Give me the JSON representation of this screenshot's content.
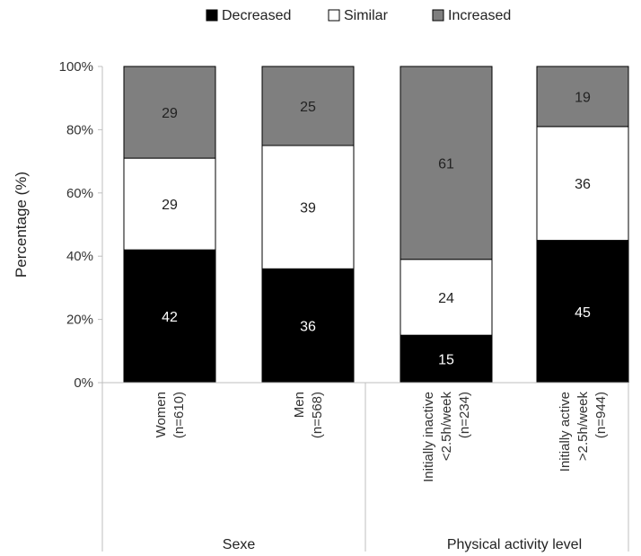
{
  "chart_data": {
    "type": "bar",
    "stacked": true,
    "title": "",
    "xlabel": "",
    "ylabel": "Percentage (%)",
    "ylim": [
      0,
      100
    ],
    "yticks": [
      "0%",
      "20%",
      "40%",
      "60%",
      "80%",
      "100%"
    ],
    "legend_position": "top",
    "categories": [
      [
        "Women",
        "(n=610)"
      ],
      [
        "Men",
        "(n=568)"
      ],
      [
        "Initially inactive",
        "<2.5h/week",
        "(n=234)"
      ],
      [
        "Initially active",
        ">2.5h/week",
        "(n=944)"
      ]
    ],
    "groups": [
      {
        "label": "Sexe",
        "categories": [
          0,
          1
        ]
      },
      {
        "label": "Physical activity level",
        "categories": [
          2,
          3
        ]
      }
    ],
    "series": [
      {
        "name": "Decreased",
        "color": "#000000",
        "label_color": "#ffffff",
        "values": [
          42,
          36,
          15,
          45
        ]
      },
      {
        "name": "Similar",
        "color": "#ffffff",
        "label_color": "#222222",
        "values": [
          29,
          39,
          24,
          36
        ]
      },
      {
        "name": "Increased",
        "color": "#7f7f7f",
        "label_color": "#222222",
        "values": [
          29,
          25,
          61,
          19
        ]
      }
    ],
    "grid": false
  }
}
